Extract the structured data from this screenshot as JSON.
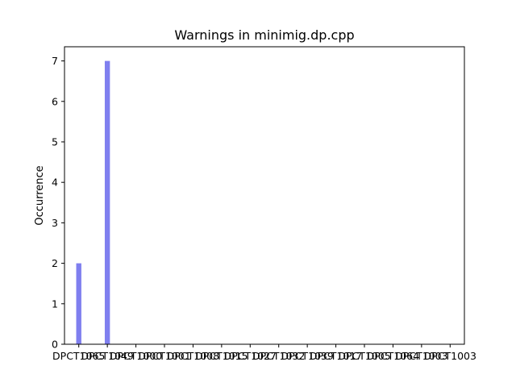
{
  "chart_data": {
    "type": "bar",
    "title": "Warnings in minimig.dp.cpp",
    "xlabel": "",
    "ylabel": "Occurrence",
    "categories": [
      "DPCT1065",
      "DPCT1049",
      "DPCT1000",
      "DPCT1001",
      "DPCT1008",
      "DPCT1015",
      "DPCT1027",
      "DPCT1032",
      "DPCT1039",
      "DPCT1017",
      "DPCT1005",
      "DPCT1064",
      "DPCT1003",
      "DPCT1003"
    ],
    "tick_labels": [
      "DPCT1065",
      "DPCT1049",
      "DPCT1000",
      "DPCT1001",
      "DPCT1008",
      "DPCT1015",
      "DPCT1027",
      "DPCT1032",
      "DPCT1039",
      "DPCT1017",
      "DPCT1005",
      "DPCT1064",
      "DPCT1003",
      "DPCT1003"
    ],
    "values": [
      2,
      7,
      0,
      0,
      0,
      0,
      0,
      0,
      0,
      0,
      0,
      0,
      0,
      0
    ],
    "ylim": [
      0,
      7.35
    ],
    "yticks": [
      0,
      1,
      2,
      3,
      4,
      5,
      6,
      7
    ],
    "bar_color": "#7f7fef",
    "grid": false,
    "legend": "none"
  }
}
